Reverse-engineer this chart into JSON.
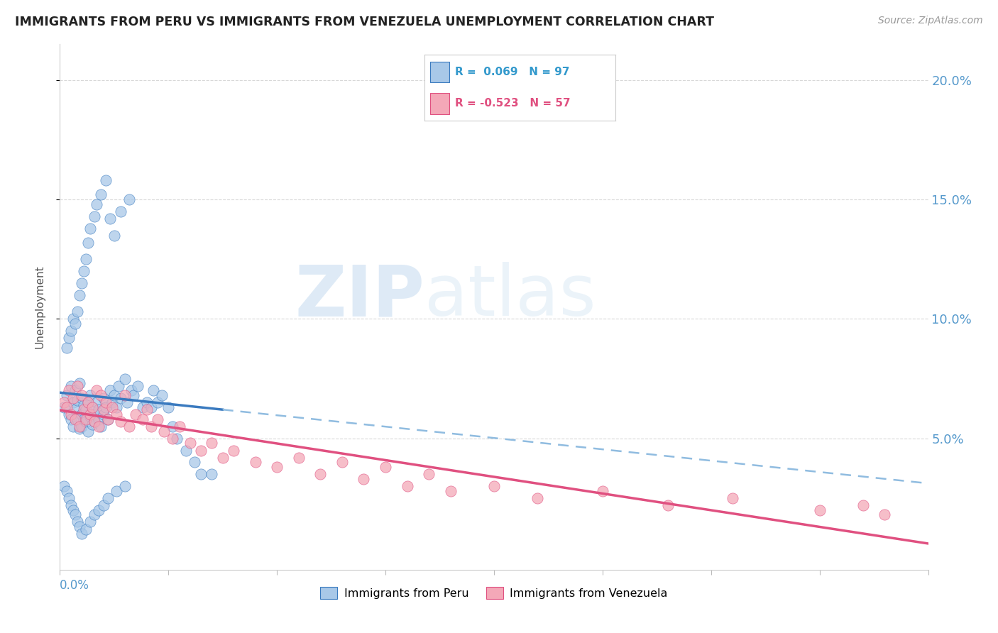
{
  "title": "IMMIGRANTS FROM PERU VS IMMIGRANTS FROM VENEZUELA UNEMPLOYMENT CORRELATION CHART",
  "source": "Source: ZipAtlas.com",
  "ylabel": "Unemployment",
  "ytick_values": [
    0.05,
    0.1,
    0.15,
    0.2
  ],
  "ytick_labels": [
    "5.0%",
    "10.0%",
    "15.0%",
    "20.0%"
  ],
  "xlim": [
    0.0,
    0.4
  ],
  "ylim": [
    -0.005,
    0.215
  ],
  "legend_peru_r": " 0.069",
  "legend_peru_n": "97",
  "legend_venezuela_r": "-0.523",
  "legend_venezuela_n": "57",
  "color_peru": "#a8c8e8",
  "color_venezuela": "#f4a8b8",
  "color_peru_line": "#3a7abf",
  "color_venezuela_line": "#e05080",
  "color_peru_line_dash": "#90bce0",
  "watermark_zip": "ZIP",
  "watermark_atlas": "atlas",
  "peru_x": [
    0.002,
    0.003,
    0.004,
    0.005,
    0.005,
    0.006,
    0.006,
    0.007,
    0.007,
    0.008,
    0.008,
    0.009,
    0.009,
    0.01,
    0.01,
    0.01,
    0.011,
    0.011,
    0.012,
    0.012,
    0.013,
    0.013,
    0.014,
    0.014,
    0.015,
    0.015,
    0.016,
    0.016,
    0.017,
    0.018,
    0.018,
    0.019,
    0.02,
    0.02,
    0.021,
    0.022,
    0.023,
    0.024,
    0.025,
    0.026,
    0.027,
    0.028,
    0.03,
    0.031,
    0.033,
    0.034,
    0.036,
    0.038,
    0.04,
    0.042,
    0.043,
    0.045,
    0.047,
    0.05,
    0.052,
    0.054,
    0.058,
    0.062,
    0.065,
    0.07,
    0.003,
    0.004,
    0.005,
    0.006,
    0.007,
    0.008,
    0.009,
    0.01,
    0.011,
    0.012,
    0.013,
    0.014,
    0.016,
    0.017,
    0.019,
    0.021,
    0.023,
    0.025,
    0.028,
    0.032,
    0.002,
    0.003,
    0.004,
    0.005,
    0.006,
    0.007,
    0.008,
    0.009,
    0.01,
    0.012,
    0.014,
    0.016,
    0.018,
    0.02,
    0.022,
    0.026,
    0.03
  ],
  "peru_y": [
    0.063,
    0.068,
    0.06,
    0.058,
    0.072,
    0.065,
    0.055,
    0.062,
    0.07,
    0.058,
    0.066,
    0.054,
    0.073,
    0.06,
    0.067,
    0.055,
    0.058,
    0.064,
    0.057,
    0.062,
    0.065,
    0.053,
    0.059,
    0.068,
    0.056,
    0.063,
    0.06,
    0.057,
    0.065,
    0.058,
    0.062,
    0.055,
    0.067,
    0.06,
    0.063,
    0.058,
    0.07,
    0.065,
    0.068,
    0.063,
    0.072,
    0.067,
    0.075,
    0.065,
    0.07,
    0.068,
    0.072,
    0.063,
    0.065,
    0.063,
    0.07,
    0.065,
    0.068,
    0.063,
    0.055,
    0.05,
    0.045,
    0.04,
    0.035,
    0.035,
    0.088,
    0.092,
    0.095,
    0.1,
    0.098,
    0.103,
    0.11,
    0.115,
    0.12,
    0.125,
    0.132,
    0.138,
    0.143,
    0.148,
    0.152,
    0.158,
    0.142,
    0.135,
    0.145,
    0.15,
    0.03,
    0.028,
    0.025,
    0.022,
    0.02,
    0.018,
    0.015,
    0.013,
    0.01,
    0.012,
    0.015,
    0.018,
    0.02,
    0.022,
    0.025,
    0.028,
    0.03
  ],
  "venezuela_x": [
    0.002,
    0.003,
    0.004,
    0.005,
    0.006,
    0.007,
    0.008,
    0.009,
    0.01,
    0.011,
    0.012,
    0.013,
    0.014,
    0.015,
    0.016,
    0.017,
    0.018,
    0.019,
    0.02,
    0.021,
    0.022,
    0.024,
    0.026,
    0.028,
    0.03,
    0.032,
    0.035,
    0.038,
    0.04,
    0.042,
    0.045,
    0.048,
    0.052,
    0.055,
    0.06,
    0.065,
    0.07,
    0.075,
    0.08,
    0.09,
    0.1,
    0.11,
    0.12,
    0.13,
    0.14,
    0.15,
    0.16,
    0.17,
    0.18,
    0.2,
    0.22,
    0.25,
    0.28,
    0.31,
    0.35,
    0.37,
    0.38
  ],
  "venezuela_y": [
    0.065,
    0.063,
    0.07,
    0.06,
    0.067,
    0.058,
    0.072,
    0.055,
    0.068,
    0.062,
    0.058,
    0.065,
    0.06,
    0.063,
    0.057,
    0.07,
    0.055,
    0.068,
    0.062,
    0.065,
    0.058,
    0.063,
    0.06,
    0.057,
    0.068,
    0.055,
    0.06,
    0.058,
    0.062,
    0.055,
    0.058,
    0.053,
    0.05,
    0.055,
    0.048,
    0.045,
    0.048,
    0.042,
    0.045,
    0.04,
    0.038,
    0.042,
    0.035,
    0.04,
    0.033,
    0.038,
    0.03,
    0.035,
    0.028,
    0.03,
    0.025,
    0.028,
    0.022,
    0.025,
    0.02,
    0.022,
    0.018
  ]
}
